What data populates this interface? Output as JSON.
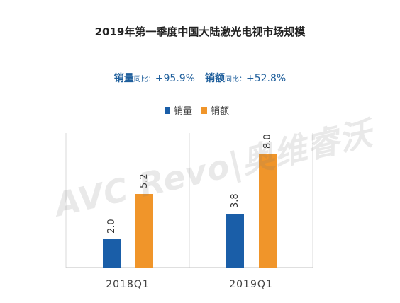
{
  "title": "2019年第一季度中国大陆激光电视市场规模",
  "summary": {
    "volume_label": "销量",
    "volume_small": "同比：",
    "volume_value": "+95.9%",
    "revenue_label": "销额",
    "revenue_small": "同比：",
    "revenue_value": "+52.8%"
  },
  "watermark": "AVC Revo|奥维睿沃",
  "colors": {
    "volume": "#1a5ea8",
    "revenue": "#f0952a",
    "grid": "#d9d9d9",
    "axis": "#bfbfbf"
  },
  "chart_data": {
    "type": "bar",
    "categories": [
      "2018Q1",
      "2019Q1"
    ],
    "series": [
      {
        "name": "销量",
        "values": [
          2.0,
          3.8
        ],
        "labels": [
          "2.0",
          "3.8"
        ]
      },
      {
        "name": "销额",
        "values": [
          5.2,
          8.0
        ],
        "labels": [
          "5.2",
          "8.0"
        ]
      }
    ],
    "ylim": [
      0,
      10
    ],
    "legend": "top-center",
    "grid": false
  }
}
